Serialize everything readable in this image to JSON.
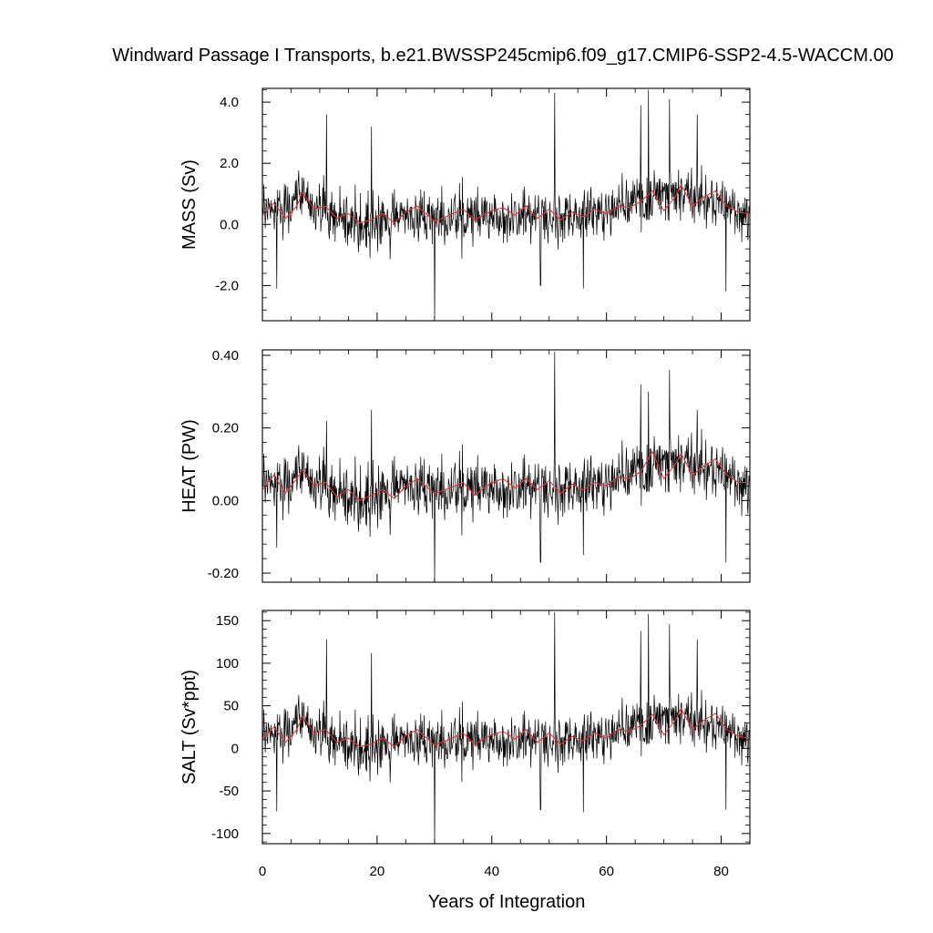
{
  "title": "Windward Passage I Transports, b.e21.BWSSP245cmip6.f09_g17.CMIP6-SSP2-4.5-WACCM.00",
  "colors": {
    "raw": "#000000",
    "smooth": "#e8303a",
    "frame": "#000000"
  },
  "chart_data": [
    {
      "type": "line",
      "ylabel": "MASS (Sv)",
      "xlabel": "",
      "xlim": [
        0,
        85
      ],
      "ylim": [
        -3.15,
        4.45
      ],
      "yticks": [
        -2.0,
        0.0,
        2.0,
        4.0
      ],
      "ytick_labels": [
        "-2.0",
        "0.0",
        "2.0",
        "4.0"
      ],
      "yminor_step": 0.4,
      "xticks": [
        0,
        20,
        40,
        60,
        80
      ],
      "xtick_labels": [],
      "raw_mean_anchors": [
        [
          0,
          0.35
        ],
        [
          6,
          0.9
        ],
        [
          10,
          0.35
        ],
        [
          17,
          0.0
        ],
        [
          24,
          0.25
        ],
        [
          30,
          0.1
        ],
        [
          40,
          0.45
        ],
        [
          50,
          0.3
        ],
        [
          60,
          0.45
        ],
        [
          67,
          0.85
        ],
        [
          72,
          1.05
        ],
        [
          78,
          0.8
        ],
        [
          85,
          0.3
        ]
      ],
      "raw_noise_amplitude": 0.85,
      "raw_spikes": [
        [
          2.5,
          -2.1
        ],
        [
          11.2,
          3.6
        ],
        [
          19.0,
          3.2
        ],
        [
          30.0,
          -3.1
        ],
        [
          48.5,
          -2.0
        ],
        [
          51.0,
          4.3
        ],
        [
          56.0,
          -2.1
        ],
        [
          66.0,
          3.9
        ],
        [
          67.3,
          4.4
        ],
        [
          71.0,
          4.1
        ],
        [
          75.8,
          3.6
        ],
        [
          80.8,
          -2.2
        ]
      ],
      "smooth": [
        [
          0,
          0.3
        ],
        [
          2,
          0.7
        ],
        [
          4,
          0.2
        ],
        [
          6,
          0.6
        ],
        [
          7,
          1.05
        ],
        [
          9,
          0.5
        ],
        [
          11,
          0.6
        ],
        [
          13,
          0.2
        ],
        [
          15,
          0.35
        ],
        [
          17,
          0.05
        ],
        [
          19,
          0.15
        ],
        [
          21,
          0.35
        ],
        [
          23,
          0.05
        ],
        [
          25,
          0.4
        ],
        [
          27,
          0.6
        ],
        [
          30,
          0.1
        ],
        [
          32,
          0.25
        ],
        [
          35,
          0.5
        ],
        [
          37,
          0.15
        ],
        [
          40,
          0.45
        ],
        [
          42,
          0.55
        ],
        [
          44,
          0.3
        ],
        [
          46,
          0.6
        ],
        [
          48,
          0.2
        ],
        [
          50,
          0.5
        ],
        [
          52,
          0.15
        ],
        [
          54,
          0.4
        ],
        [
          56,
          0.25
        ],
        [
          58,
          0.5
        ],
        [
          60,
          0.35
        ],
        [
          62,
          0.6
        ],
        [
          64,
          0.55
        ],
        [
          66,
          0.75
        ],
        [
          68,
          1.1
        ],
        [
          70,
          0.45
        ],
        [
          72,
          0.9
        ],
        [
          73,
          1.3
        ],
        [
          75,
          0.6
        ],
        [
          77,
          0.9
        ],
        [
          79,
          1.1
        ],
        [
          81,
          0.6
        ],
        [
          83,
          0.4
        ],
        [
          85,
          0.35
        ]
      ]
    },
    {
      "type": "line",
      "ylabel": "HEAT (PW)",
      "xlabel": "",
      "xlim": [
        0,
        85
      ],
      "ylim": [
        -0.225,
        0.415
      ],
      "yticks": [
        -0.2,
        0.0,
        0.2,
        0.4
      ],
      "ytick_labels": [
        "-0.20",
        "0.00",
        "0.20",
        "0.40"
      ],
      "yminor_step": 0.04,
      "xticks": [
        0,
        20,
        40,
        60,
        80
      ],
      "xtick_labels": [],
      "raw_mean_anchors": [
        [
          0,
          0.04
        ],
        [
          6,
          0.07
        ],
        [
          10,
          0.03
        ],
        [
          17,
          0.0
        ],
        [
          24,
          0.04
        ],
        [
          30,
          0.02
        ],
        [
          40,
          0.05
        ],
        [
          50,
          0.04
        ],
        [
          60,
          0.05
        ],
        [
          67,
          0.09
        ],
        [
          72,
          0.11
        ],
        [
          78,
          0.09
        ],
        [
          85,
          0.04
        ]
      ],
      "raw_noise_amplitude": 0.08,
      "raw_spikes": [
        [
          2.5,
          -0.13
        ],
        [
          11.2,
          0.22
        ],
        [
          19.0,
          0.25
        ],
        [
          30.0,
          -0.225
        ],
        [
          48.5,
          -0.17
        ],
        [
          51.0,
          0.41
        ],
        [
          56.0,
          -0.15
        ],
        [
          66.0,
          0.32
        ],
        [
          67.3,
          0.3
        ],
        [
          71.0,
          0.36
        ],
        [
          75.8,
          0.25
        ],
        [
          80.8,
          -0.17
        ]
      ],
      "smooth": [
        [
          0,
          0.03
        ],
        [
          2,
          0.07
        ],
        [
          4,
          0.02
        ],
        [
          6,
          0.06
        ],
        [
          7,
          0.085
        ],
        [
          9,
          0.04
        ],
        [
          11,
          0.05
        ],
        [
          13,
          0.01
        ],
        [
          15,
          0.03
        ],
        [
          17,
          0.0
        ],
        [
          19,
          0.015
        ],
        [
          21,
          0.03
        ],
        [
          23,
          0.005
        ],
        [
          25,
          0.04
        ],
        [
          27,
          0.06
        ],
        [
          30,
          0.02
        ],
        [
          32,
          0.03
        ],
        [
          35,
          0.05
        ],
        [
          37,
          0.015
        ],
        [
          40,
          0.05
        ],
        [
          42,
          0.06
        ],
        [
          44,
          0.035
        ],
        [
          46,
          0.06
        ],
        [
          48,
          0.03
        ],
        [
          50,
          0.055
        ],
        [
          52,
          0.02
        ],
        [
          54,
          0.045
        ],
        [
          56,
          0.03
        ],
        [
          58,
          0.05
        ],
        [
          60,
          0.04
        ],
        [
          62,
          0.065
        ],
        [
          64,
          0.06
        ],
        [
          66,
          0.08
        ],
        [
          68,
          0.135
        ],
        [
          70,
          0.06
        ],
        [
          72,
          0.1
        ],
        [
          73,
          0.13
        ],
        [
          75,
          0.07
        ],
        [
          77,
          0.095
        ],
        [
          79,
          0.115
        ],
        [
          81,
          0.07
        ],
        [
          83,
          0.05
        ],
        [
          85,
          0.05
        ]
      ]
    },
    {
      "type": "line",
      "ylabel": "SALT (Sv*ppt)",
      "xlabel": "Years of Integration",
      "xlim": [
        0,
        85
      ],
      "ylim": [
        -112,
        162
      ],
      "yticks": [
        -100,
        -50,
        0,
        50,
        100,
        150
      ],
      "ytick_labels": [
        "-100",
        "-50",
        "0",
        "50",
        "100",
        "150"
      ],
      "yminor_step": 10,
      "xticks": [
        0,
        20,
        40,
        60,
        80
      ],
      "xtick_labels": [
        "0",
        "20",
        "40",
        "60",
        "80"
      ],
      "raw_mean_anchors": [
        [
          0,
          12
        ],
        [
          6,
          32
        ],
        [
          10,
          12
        ],
        [
          17,
          0
        ],
        [
          24,
          9
        ],
        [
          30,
          4
        ],
        [
          40,
          16
        ],
        [
          50,
          11
        ],
        [
          60,
          16
        ],
        [
          67,
          30
        ],
        [
          72,
          38
        ],
        [
          78,
          28
        ],
        [
          85,
          11
        ]
      ],
      "raw_noise_amplitude": 30,
      "raw_spikes": [
        [
          2.5,
          -74
        ],
        [
          11.2,
          128
        ],
        [
          19.0,
          112
        ],
        [
          30.0,
          -112
        ],
        [
          48.5,
          -72
        ],
        [
          51.0,
          160
        ],
        [
          56.0,
          -75
        ],
        [
          66.0,
          138
        ],
        [
          67.3,
          158
        ],
        [
          71.0,
          146
        ],
        [
          75.8,
          128
        ],
        [
          80.8,
          -72
        ]
      ],
      "smooth": [
        [
          0,
          10
        ],
        [
          2,
          25
        ],
        [
          4,
          7
        ],
        [
          6,
          22
        ],
        [
          7,
          38
        ],
        [
          9,
          18
        ],
        [
          11,
          22
        ],
        [
          13,
          7
        ],
        [
          15,
          12
        ],
        [
          17,
          2
        ],
        [
          19,
          5
        ],
        [
          21,
          12
        ],
        [
          23,
          2
        ],
        [
          25,
          15
        ],
        [
          27,
          22
        ],
        [
          30,
          4
        ],
        [
          32,
          9
        ],
        [
          35,
          18
        ],
        [
          37,
          5
        ],
        [
          40,
          16
        ],
        [
          42,
          20
        ],
        [
          44,
          11
        ],
        [
          46,
          22
        ],
        [
          48,
          7
        ],
        [
          50,
          18
        ],
        [
          52,
          5
        ],
        [
          54,
          14
        ],
        [
          56,
          9
        ],
        [
          58,
          18
        ],
        [
          60,
          12
        ],
        [
          62,
          22
        ],
        [
          64,
          20
        ],
        [
          66,
          27
        ],
        [
          68,
          40
        ],
        [
          70,
          16
        ],
        [
          72,
          33
        ],
        [
          73,
          47
        ],
        [
          75,
          22
        ],
        [
          77,
          33
        ],
        [
          79,
          41
        ],
        [
          81,
          22
        ],
        [
          83,
          14
        ],
        [
          85,
          12
        ]
      ]
    }
  ]
}
